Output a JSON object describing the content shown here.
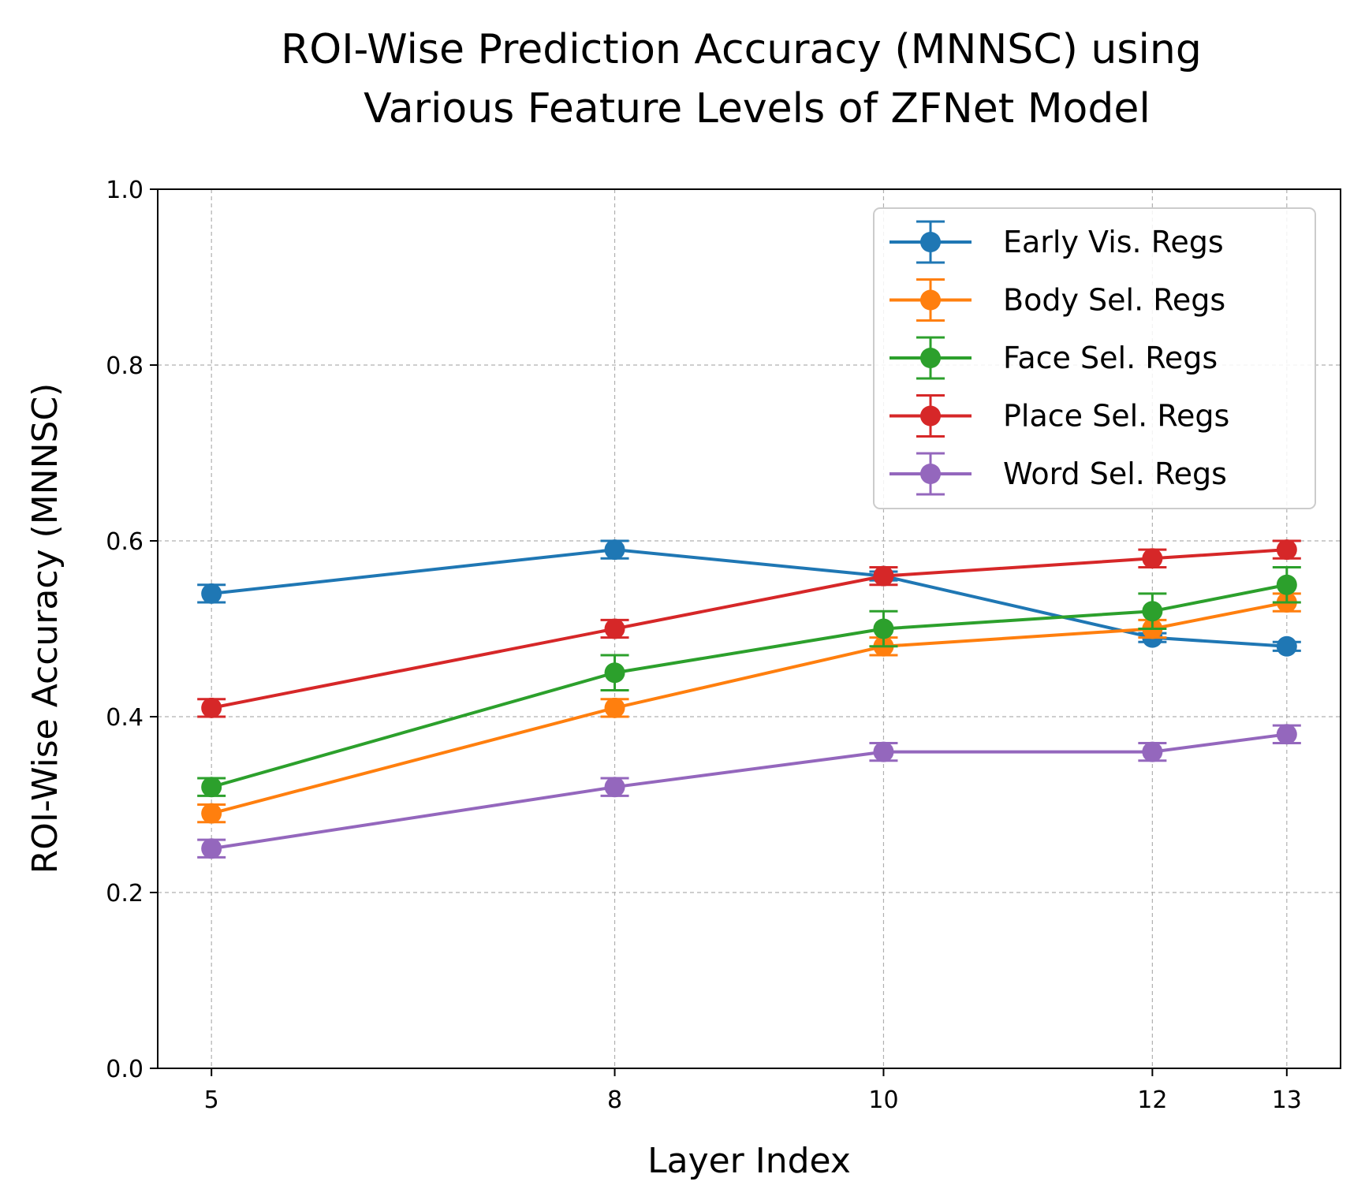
{
  "chart_data": {
    "type": "line",
    "title_lines": [
      "ROI-Wise Prediction Accuracy (MNNSC) using",
      "Various Feature Levels of ZFNet Model"
    ],
    "xlabel": "Layer Index",
    "ylabel": "ROI-Wise Accuracy (MNNSC)",
    "x": [
      5,
      8,
      10,
      12,
      13
    ],
    "x_tick_labels": [
      "5",
      "8",
      "10",
      "12",
      "13"
    ],
    "y_ticks": [
      0.0,
      0.2,
      0.4,
      0.6,
      0.8,
      1.0
    ],
    "y_tick_labels": [
      "0.0",
      "0.2",
      "0.4",
      "0.6",
      "0.8",
      "1.0"
    ],
    "ylim": [
      0,
      1.0
    ],
    "grid": true,
    "legend_position": "top-right",
    "error_bars": true,
    "series": [
      {
        "name": "Early Vis. Regs",
        "color": "#1f77b4",
        "values": [
          0.54,
          0.59,
          0.56,
          0.49,
          0.48
        ],
        "errors": [
          0.01,
          0.01,
          0.005,
          0.005,
          0.005
        ]
      },
      {
        "name": "Body Sel. Regs",
        "color": "#ff7f0e",
        "values": [
          0.29,
          0.41,
          0.48,
          0.5,
          0.53
        ],
        "errors": [
          0.01,
          0.01,
          0.01,
          0.01,
          0.01
        ]
      },
      {
        "name": "Face Sel. Regs",
        "color": "#2ca02c",
        "values": [
          0.32,
          0.45,
          0.5,
          0.52,
          0.55
        ],
        "errors": [
          0.01,
          0.02,
          0.02,
          0.02,
          0.02
        ]
      },
      {
        "name": "Place Sel. Regs",
        "color": "#d62728",
        "values": [
          0.41,
          0.5,
          0.56,
          0.58,
          0.59
        ],
        "errors": [
          0.01,
          0.01,
          0.01,
          0.01,
          0.01
        ]
      },
      {
        "name": "Word Sel. Regs",
        "color": "#9467bd",
        "values": [
          0.25,
          0.32,
          0.36,
          0.36,
          0.38
        ],
        "errors": [
          0.01,
          0.01,
          0.01,
          0.01,
          0.01
        ]
      }
    ]
  }
}
